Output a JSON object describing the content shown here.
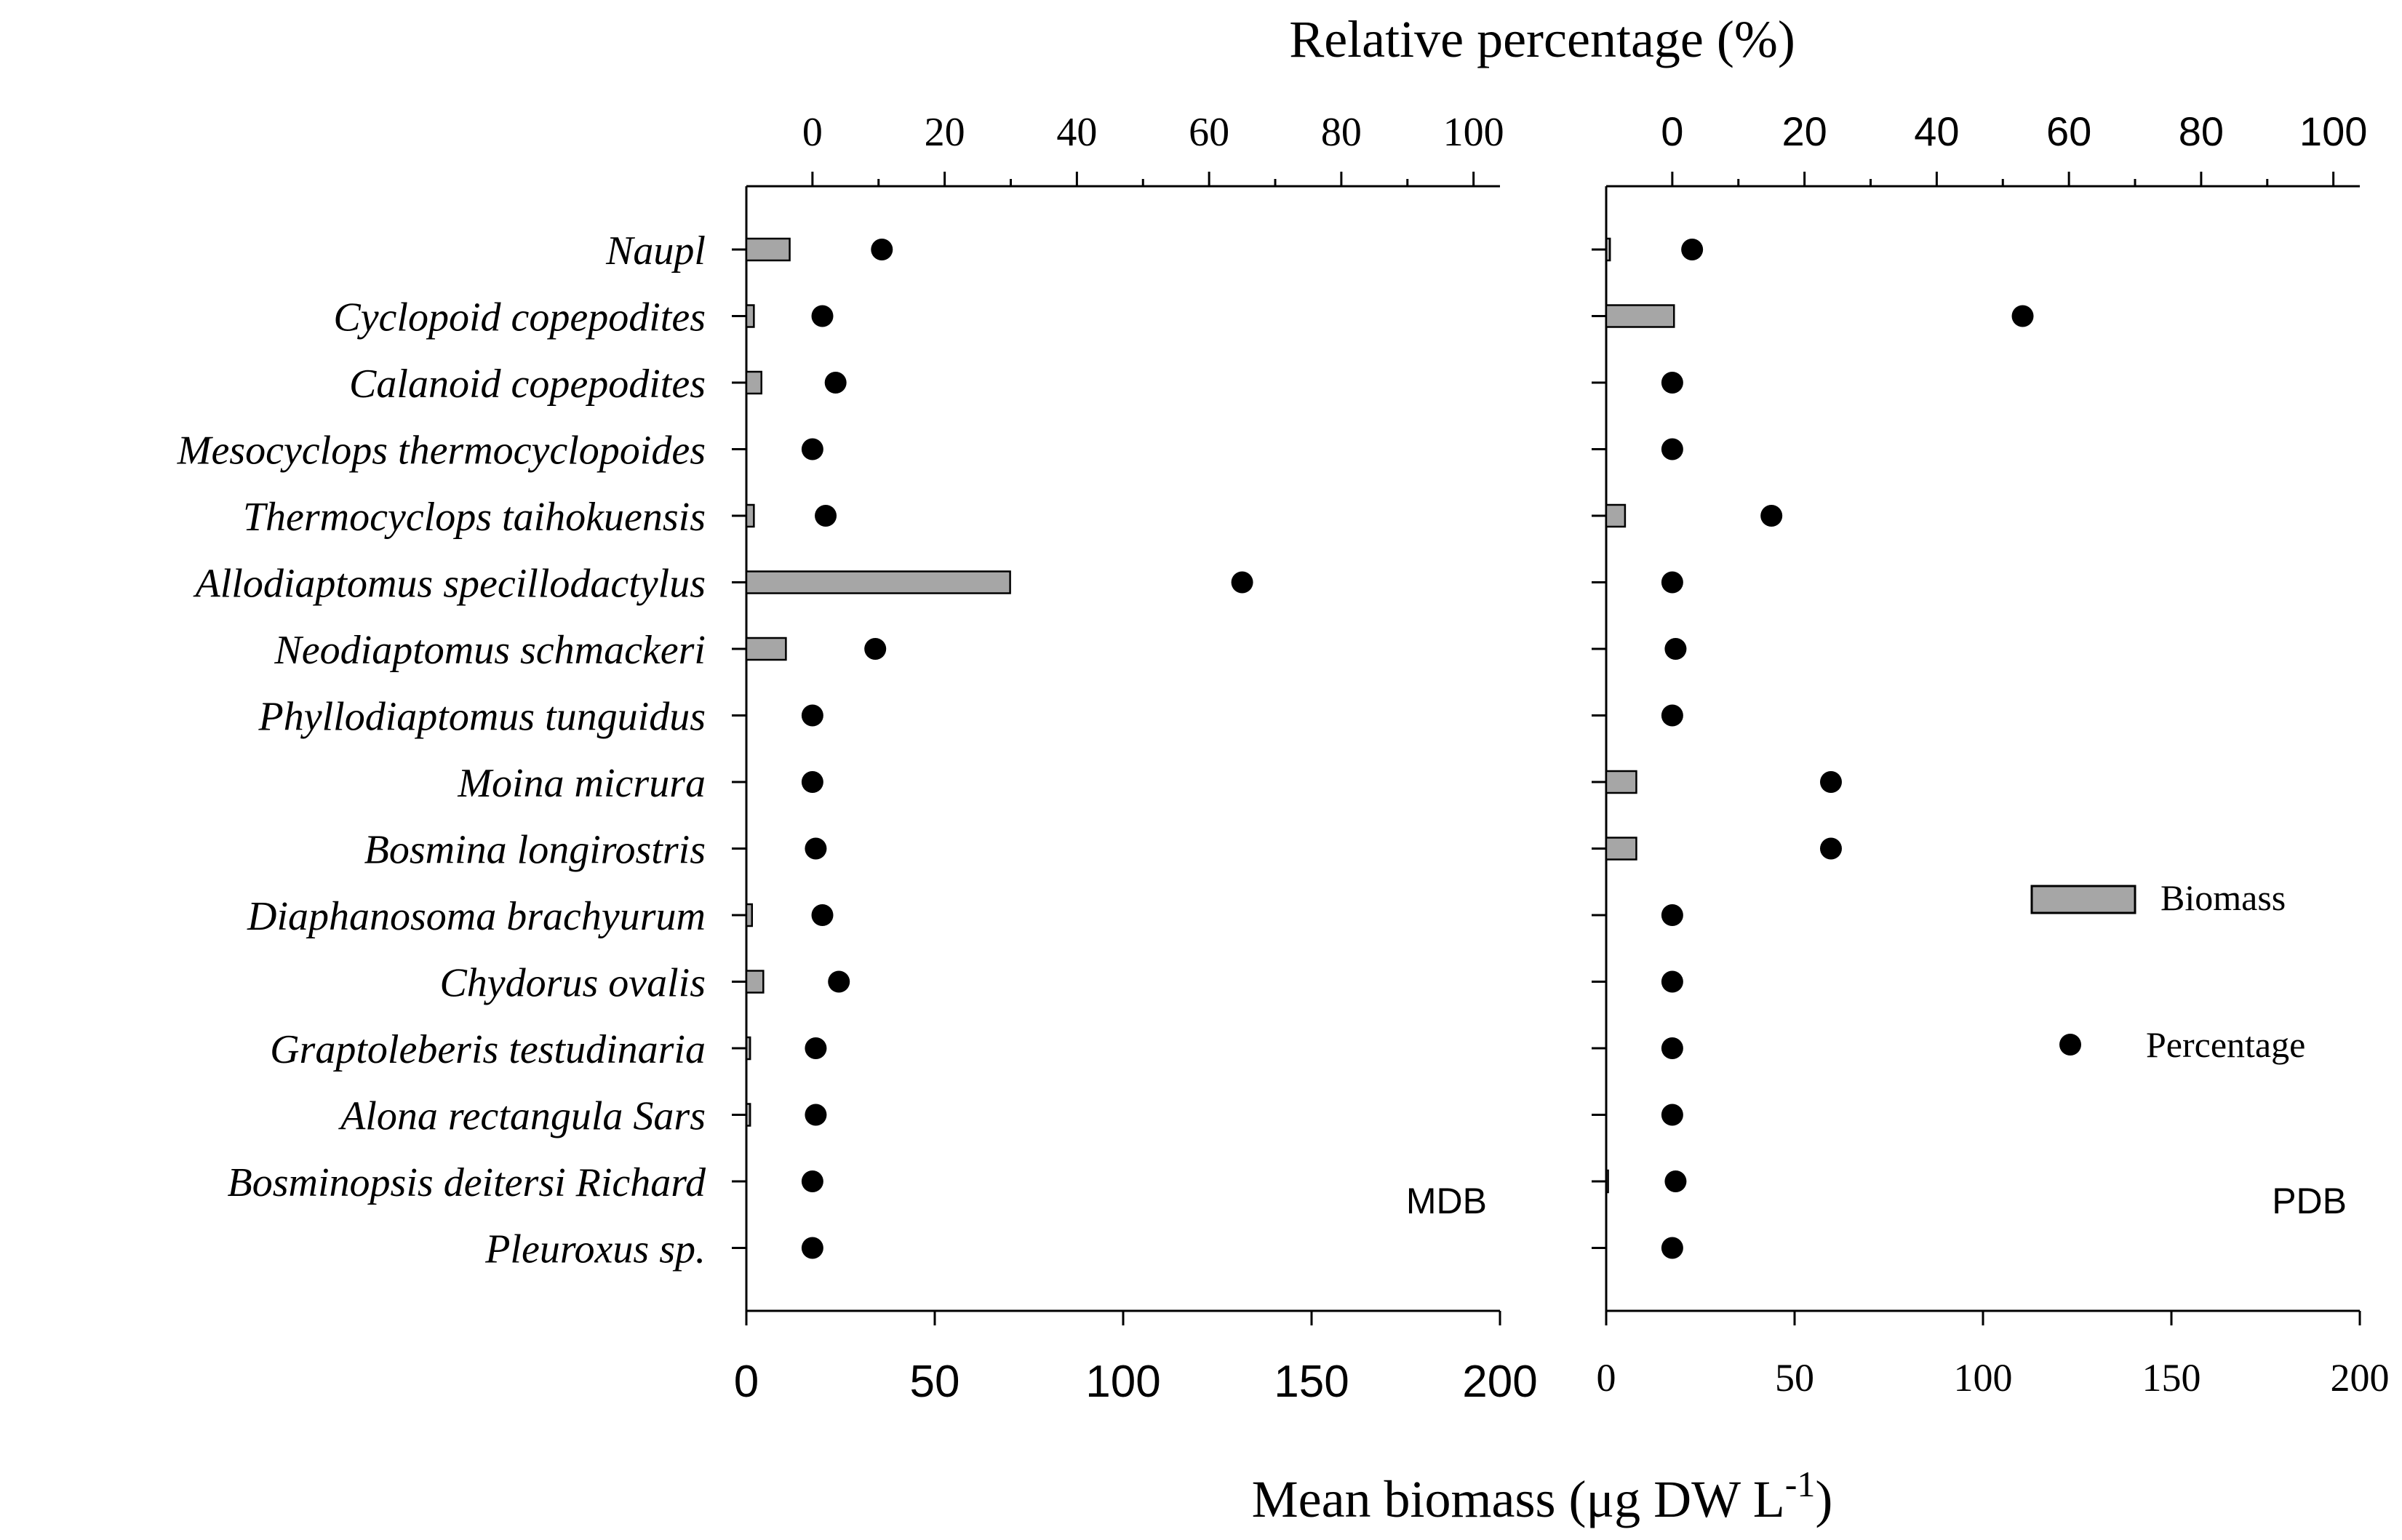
{
  "chart_data": {
    "type": "bar",
    "title": "",
    "top_axis_label": "Relative percentage (%)",
    "xlabel": "Mean biomass  (μg DW L",
    "xlabel_superscript": "-1",
    "xlabel_suffix": ")",
    "xlim_biomass": [
      0,
      200
    ],
    "xlim_percentage": [
      -10,
      104
    ],
    "biomass_ticks": [
      "0",
      "50",
      "100",
      "150",
      "200"
    ],
    "percentage_ticks": [
      "0",
      "20",
      "40",
      "60",
      "80",
      "100"
    ],
    "categories": [
      "Naupl",
      "Cyclopoid copepodites",
      "Calanoid copepodites",
      "Mesocyclops thermocyclopoides",
      "Thermocyclops taihokuensis",
      "Allodiaptomus specillodactylus",
      "Neodiaptomus schmackeri",
      "Phyllodiaptomus tunguidus",
      "Moina micrura",
      "Bosmina longirostris",
      "Diaphanosoma brachyurum",
      "Chydorus ovalis",
      "Graptoleberis testudinaria",
      "Alona rectangula Sars",
      "Bosminopsis deitersi Richard",
      "Pleuroxus sp."
    ],
    "panels": [
      {
        "label": "MDB",
        "series": [
          {
            "name": "Biomass",
            "type": "bar",
            "values": [
              11.5,
              2,
              4,
              0,
              2,
              70,
              10.5,
              0,
              0,
              0,
              1.5,
              4.5,
              1,
              1,
              0,
              0
            ]
          },
          {
            "name": "Percentage",
            "type": "scatter",
            "values": [
              10.5,
              1.5,
              3.5,
              0,
              2,
              65,
              9.5,
              0,
              0,
              0.5,
              1.5,
              4,
              0.5,
              0.5,
              0,
              0
            ]
          }
        ]
      },
      {
        "label": "PDB",
        "series": [
          {
            "name": "Biomass",
            "type": "bar",
            "values": [
              1,
              18,
              0,
              0,
              5,
              0,
              0,
              0,
              8,
              8,
              0,
              0,
              0,
              0,
              0.5,
              0
            ]
          },
          {
            "name": "Percentage",
            "type": "scatter",
            "values": [
              3,
              53,
              0,
              0,
              15,
              0,
              0.5,
              0,
              24,
              24,
              0,
              0,
              0,
              0,
              0.5,
              0
            ]
          }
        ]
      }
    ],
    "legend": {
      "placement": "right",
      "entries": [
        {
          "name": "Biomass",
          "marker": "bar"
        },
        {
          "name": "Percentage",
          "marker": "dot"
        }
      ]
    },
    "colors": {
      "bar_fill": "#a6a6a6",
      "bar_stroke": "#000000",
      "dot": "#000000",
      "axis": "#000000"
    }
  }
}
